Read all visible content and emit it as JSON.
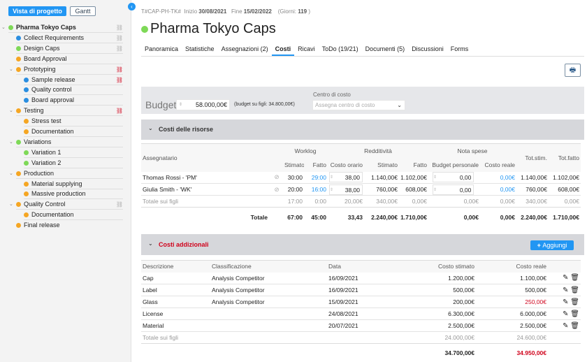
{
  "sidebar": {
    "project_view_label": "Vista di progetto",
    "gantt_label": "Gantt",
    "items": [
      {
        "label": "Pharma Tokyo Caps",
        "level": 0,
        "status": "#7ed957",
        "expanded": true,
        "icon": "gray",
        "bold": true
      },
      {
        "label": "Collect Requirements",
        "level": 1,
        "status": "#2b8ee0",
        "icon": "gray"
      },
      {
        "label": "Design Caps",
        "level": 1,
        "status": "#7ed957",
        "icon": "gray"
      },
      {
        "label": "Board Approval",
        "level": 1,
        "status": "#f5a623"
      },
      {
        "label": "Prototyping",
        "level": 1,
        "status": "#f5a623",
        "expanded": true,
        "icon": "red"
      },
      {
        "label": "Sample release",
        "level": 2,
        "status": "#2b8ee0",
        "icon": "red"
      },
      {
        "label": "Quality control",
        "level": 2,
        "status": "#2b8ee0"
      },
      {
        "label": "Board approval",
        "level": 2,
        "status": "#2b8ee0"
      },
      {
        "label": "Testing",
        "level": 1,
        "status": "#f5a623",
        "expanded": true,
        "icon": "red"
      },
      {
        "label": "Stress test",
        "level": 2,
        "status": "#f5a623"
      },
      {
        "label": "Documentation",
        "level": 2,
        "status": "#f5a623"
      },
      {
        "label": "Variations",
        "level": 1,
        "status": "#7ed957",
        "expanded": true
      },
      {
        "label": "Variation 1",
        "level": 2,
        "status": "#7ed957"
      },
      {
        "label": "Variation 2",
        "level": 2,
        "status": "#7ed957"
      },
      {
        "label": "Production",
        "level": 1,
        "status": "#f5a623",
        "expanded": true
      },
      {
        "label": "Material supplying",
        "level": 2,
        "status": "#f5a623"
      },
      {
        "label": "Massive production",
        "level": 2,
        "status": "#f5a623"
      },
      {
        "label": "Quality Control",
        "level": 1,
        "status": "#f5a623",
        "expanded": true,
        "icon": "gray"
      },
      {
        "label": "Documentation",
        "level": 2,
        "status": "#f5a623"
      },
      {
        "label": "Final release",
        "level": 1,
        "status": "#f5a623"
      }
    ]
  },
  "header": {
    "code": "T#CAP-PH-TK#",
    "start_label": "Inizio",
    "start": "30/08/2021",
    "end_label": "Fine",
    "end": "15/02/2022",
    "days_label": "(Giorni:",
    "days": "119",
    "days_close": ")",
    "title": "Pharma Tokyo Caps",
    "status_color": "#7ed957"
  },
  "tabs": [
    "Panoramica",
    "Statistiche",
    "Assegnazioni (2)",
    "Costi",
    "Ricavi",
    "ToDo (19/21)",
    "Documenti (5)",
    "Discussioni",
    "Forms"
  ],
  "active_tab": "Costi",
  "budget": {
    "label": "Budget",
    "value": "58.000,00€",
    "children_note": "(budget su figli: 34.800,00€)",
    "cost_center_label": "Centro di costo",
    "cost_center_placeholder": "Assegna centro di costo"
  },
  "resources": {
    "title": "Costi delle risorse",
    "groups": {
      "worklog": "Worklog",
      "redditivita": "Redditività",
      "nota_spese": "Nota spese"
    },
    "headers": {
      "assignee": "Assegnatario",
      "stimato": "Stimato",
      "fatto": "Fatto",
      "costo_orario": "Costo orario",
      "r_stimato": "Stimato",
      "r_fatto": "Fatto",
      "budget_personale": "Budget personale",
      "costo_reale": "Costo reale",
      "tot_stim": "Tot.stim.",
      "tot_fatto": "Tot.fatto"
    },
    "rows": [
      {
        "name": "Thomas Rossi - 'PM'",
        "stimato": "30:00",
        "fatto": "29:00",
        "costo_orario": "38,00",
        "r_stimato": "1.140,00€",
        "r_fatto": "1.102,00€",
        "budget_personale": "0,00",
        "costo_reale": "0,00€",
        "tot_stim": "1.140,00€",
        "tot_fatto": "1.102,00€"
      },
      {
        "name": "Giulia Smith - 'WK'",
        "stimato": "20:00",
        "fatto": "16:00",
        "costo_orario": "38,00",
        "r_stimato": "760,00€",
        "r_fatto": "608,00€",
        "budget_personale": "0,00",
        "costo_reale": "0,00€",
        "tot_stim": "760,00€",
        "tot_fatto": "608,00€"
      }
    ],
    "children": {
      "label": "Totale sui figli",
      "stimato": "17:00",
      "fatto": "0:00",
      "costo_orario": "20,00€",
      "r_stimato": "340,00€",
      "r_fatto": "0,00€",
      "budget_personale": "0,00€",
      "costo_reale": "0,00€",
      "tot_stim": "340,00€",
      "tot_fatto": "0,00€"
    },
    "total": {
      "label": "Totale",
      "stimato": "67:00",
      "fatto": "45:00",
      "costo_orario": "33,43",
      "r_stimato": "2.240,00€",
      "r_fatto": "1.710,00€",
      "budget_personale": "0,00€",
      "costo_reale": "0,00€",
      "tot_stim": "2.240,00€",
      "tot_fatto": "1.710,00€"
    }
  },
  "additional": {
    "title": "Costi addizionali",
    "add_label": "Aggiungi",
    "headers": {
      "descrizione": "Descrizione",
      "classificazione": "Classificazione",
      "data": "Data",
      "costo_stimato": "Costo stimato",
      "costo_reale": "Costo reale"
    },
    "rows": [
      {
        "descrizione": "Cap",
        "classificazione": "Analysis Competitor",
        "data": "16/09/2021",
        "costo_stimato": "1.200,00€",
        "costo_reale": "1.100,00€",
        "over": false
      },
      {
        "descrizione": "Label",
        "classificazione": "Analysis Competitor",
        "data": "16/09/2021",
        "costo_stimato": "500,00€",
        "costo_reale": "500,00€",
        "over": false
      },
      {
        "descrizione": "Glass",
        "classificazione": "Analysis Competitor",
        "data": "15/09/2021",
        "costo_stimato": "200,00€",
        "costo_reale": "250,00€",
        "over": true
      },
      {
        "descrizione": "License",
        "classificazione": "",
        "data": "24/08/2021",
        "costo_stimato": "6.300,00€",
        "costo_reale": "6.000,00€",
        "over": false
      },
      {
        "descrizione": "Material",
        "classificazione": "",
        "data": "20/07/2021",
        "costo_stimato": "2.500,00€",
        "costo_reale": "2.500,00€",
        "over": false
      }
    ],
    "children": {
      "label": "Totale sui figli",
      "costo_stimato": "24.000,00€",
      "costo_reale": "24.600,00€"
    },
    "total": {
      "label": "Totale",
      "costo_stimato": "34.700,00€",
      "costo_reale": "34.950,00€"
    }
  },
  "colors": {
    "accent": "#2196f3",
    "over_budget": "#d0021b"
  }
}
